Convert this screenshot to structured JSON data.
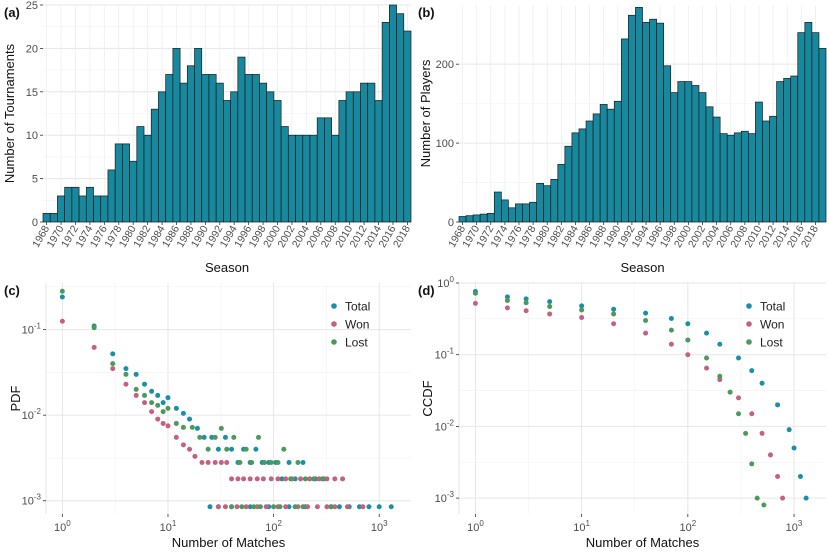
{
  "colors": {
    "teal": "#1a8fa6",
    "pink": "#c4617f",
    "green": "#4a9a5c",
    "bar": "#17889d"
  },
  "chart_data": [
    {
      "panel": "(a)",
      "type": "bar",
      "xlabel": "Season",
      "ylabel": "Number of Tournaments",
      "ylim": [
        0,
        25
      ],
      "yticks": [
        0,
        5,
        10,
        15,
        20,
        25
      ],
      "start_year": 1968,
      "xtick_labels": [
        "1968",
        "1970",
        "1972",
        "1974",
        "1976",
        "1978",
        "1980",
        "1982",
        "1984",
        "1986",
        "1988",
        "1990",
        "1992",
        "1994",
        "1996",
        "1998",
        "2000",
        "2002",
        "2004",
        "2006",
        "2008",
        "2010",
        "2012",
        "2014",
        "2016",
        "2018"
      ],
      "values": [
        1,
        1,
        3,
        4,
        4,
        3,
        4,
        3,
        3,
        6,
        9,
        9,
        7,
        11,
        10,
        13,
        15,
        17,
        20,
        16,
        18,
        20,
        17,
        17,
        16,
        14,
        15,
        19,
        17,
        17,
        16,
        15,
        14,
        11,
        10,
        10,
        10,
        10,
        12,
        12,
        10,
        14,
        15,
        15,
        16,
        16,
        14,
        23,
        25,
        24,
        22
      ]
    },
    {
      "panel": "(b)",
      "type": "bar",
      "xlabel": "Season",
      "ylabel": "Number of Players",
      "ylim": [
        0,
        275
      ],
      "yticks": [
        0,
        100,
        200
      ],
      "start_year": 1968,
      "xtick_labels": [
        "1968",
        "1970",
        "1972",
        "1974",
        "1976",
        "1978",
        "1980",
        "1982",
        "1984",
        "1986",
        "1988",
        "1990",
        "1992",
        "1994",
        "1996",
        "1998",
        "2000",
        "2002",
        "2004",
        "2006",
        "2008",
        "2010",
        "2012",
        "2014",
        "2016",
        "2018"
      ],
      "values": [
        7,
        8,
        9,
        10,
        11,
        38,
        28,
        18,
        23,
        23,
        25,
        49,
        46,
        54,
        73,
        96,
        113,
        118,
        128,
        137,
        149,
        143,
        153,
        232,
        262,
        272,
        253,
        257,
        252,
        198,
        164,
        178,
        178,
        173,
        164,
        146,
        133,
        112,
        110,
        113,
        115,
        112,
        152,
        128,
        134,
        178,
        182,
        185,
        240,
        253,
        240,
        220
      ]
    },
    {
      "panel": "(c)",
      "type": "scatter",
      "xlabel": "Number of Matches",
      "ylabel": "PDF",
      "xscale": "log",
      "yscale": "log",
      "xlim": [
        0.7,
        2000
      ],
      "ylim": [
        0.0007,
        0.35
      ],
      "xtick_labels": [
        "10^0",
        "10^1",
        "10^2",
        "10^3"
      ],
      "ytick_labels": [
        "10^-3",
        "10^-2",
        "10^-1"
      ],
      "legend": [
        "Total",
        "Won",
        "Lost"
      ],
      "legend_position": "top-right",
      "series": [
        {
          "name": "Total",
          "color": "#1a8fa6",
          "points": [
            [
              1,
              0.24
            ],
            [
              2,
              0.11
            ],
            [
              3,
              0.052
            ],
            [
              4,
              0.035
            ],
            [
              5,
              0.03
            ],
            [
              6,
              0.023
            ],
            [
              7,
              0.019
            ],
            [
              8,
              0.017
            ],
            [
              9,
              0.014
            ],
            [
              10,
              0.016
            ],
            [
              12,
              0.012
            ],
            [
              14,
              0.0105
            ],
            [
              16,
              0.009
            ],
            [
              19,
              0.007
            ],
            [
              22,
              0.0055
            ],
            [
              26,
              0.0055
            ],
            [
              30,
              0.004
            ],
            [
              35,
              0.0055
            ],
            [
              40,
              0.004
            ],
            [
              46,
              0.0028
            ],
            [
              52,
              0.004
            ],
            [
              60,
              0.0028
            ],
            [
              68,
              0.004
            ],
            [
              78,
              0.0028
            ],
            [
              90,
              0.0028
            ],
            [
              105,
              0.0028
            ],
            [
              120,
              0.0018
            ],
            [
              140,
              0.0028
            ],
            [
              160,
              0.0018
            ],
            [
              190,
              0.0028
            ],
            [
              220,
              0.0018
            ],
            [
              250,
              0.0018
            ],
            [
              300,
              0.0018
            ],
            [
              350,
              0.00085
            ],
            [
              420,
              0.00085
            ],
            [
              520,
              0.00085
            ],
            [
              650,
              0.00085
            ],
            [
              800,
              0.00085
            ],
            [
              1000,
              0.00085
            ],
            [
              1300,
              0.00085
            ],
            [
              25,
              0.00085
            ],
            [
              30,
              0.00085
            ],
            [
              40,
              0.00085
            ],
            [
              60,
              0.00085
            ],
            [
              90,
              0.00085
            ],
            [
              140,
              0.00085
            ],
            [
              200,
              0.00085
            ]
          ]
        },
        {
          "name": "Won",
          "color": "#c4617f",
          "points": [
            [
              1,
              0.125
            ],
            [
              2,
              0.062
            ],
            [
              3,
              0.035
            ],
            [
              4,
              0.023
            ],
            [
              5,
              0.017
            ],
            [
              6,
              0.014
            ],
            [
              7,
              0.011
            ],
            [
              8,
              0.009
            ],
            [
              9,
              0.008
            ],
            [
              10,
              0.0075
            ],
            [
              12,
              0.0055
            ],
            [
              14,
              0.0045
            ],
            [
              16,
              0.004
            ],
            [
              18,
              0.0033
            ],
            [
              21,
              0.0028
            ],
            [
              24,
              0.0028
            ],
            [
              28,
              0.0028
            ],
            [
              32,
              0.0028
            ],
            [
              36,
              0.0028
            ],
            [
              40,
              0.0018
            ],
            [
              46,
              0.0018
            ],
            [
              52,
              0.0018
            ],
            [
              60,
              0.0018
            ],
            [
              70,
              0.0018
            ],
            [
              80,
              0.0018
            ],
            [
              95,
              0.0018
            ],
            [
              110,
              0.0018
            ],
            [
              130,
              0.0018
            ],
            [
              150,
              0.0018
            ],
            [
              180,
              0.0018
            ],
            [
              220,
              0.0018
            ],
            [
              270,
              0.0018
            ],
            [
              320,
              0.0018
            ],
            [
              380,
              0.0018
            ],
            [
              450,
              0.0018
            ],
            [
              30,
              0.00085
            ],
            [
              35,
              0.00085
            ],
            [
              45,
              0.00085
            ],
            [
              55,
              0.00085
            ],
            [
              70,
              0.00085
            ],
            [
              85,
              0.00085
            ],
            [
              110,
              0.00085
            ],
            [
              130,
              0.00085
            ],
            [
              170,
              0.00085
            ],
            [
              210,
              0.00085
            ],
            [
              260,
              0.00085
            ],
            [
              320,
              0.00085
            ],
            [
              380,
              0.00085
            ],
            [
              500,
              0.00085
            ],
            [
              700,
              0.00085
            ]
          ]
        },
        {
          "name": "Lost",
          "color": "#4a9a5c",
          "points": [
            [
              1,
              0.28
            ],
            [
              2,
              0.105
            ],
            [
              3,
              0.04
            ],
            [
              4,
              0.03
            ],
            [
              5,
              0.02
            ],
            [
              6,
              0.017
            ],
            [
              7,
              0.014
            ],
            [
              8,
              0.013
            ],
            [
              9,
              0.011
            ],
            [
              10,
              0.012
            ],
            [
              12,
              0.008
            ],
            [
              14,
              0.0072
            ],
            [
              17,
              0.0072
            ],
            [
              20,
              0.0055
            ],
            [
              24,
              0.004
            ],
            [
              28,
              0.0055
            ],
            [
              32,
              0.007
            ],
            [
              36,
              0.004
            ],
            [
              42,
              0.0055
            ],
            [
              48,
              0.0028
            ],
            [
              55,
              0.004
            ],
            [
              62,
              0.0028
            ],
            [
              72,
              0.0055
            ],
            [
              82,
              0.0028
            ],
            [
              95,
              0.0028
            ],
            [
              110,
              0.0028
            ],
            [
              125,
              0.004
            ],
            [
              145,
              0.0018
            ],
            [
              170,
              0.0028
            ],
            [
              200,
              0.0018
            ],
            [
              240,
              0.0018
            ],
            [
              290,
              0.0018
            ],
            [
              40,
              0.00085
            ],
            [
              50,
              0.00085
            ],
            [
              65,
              0.00085
            ],
            [
              75,
              0.00085
            ],
            [
              100,
              0.00085
            ],
            [
              115,
              0.00085
            ],
            [
              160,
              0.00085
            ],
            [
              190,
              0.00085
            ],
            [
              350,
              0.00085
            ]
          ]
        }
      ]
    },
    {
      "panel": "(d)",
      "type": "scatter",
      "xlabel": "Number of Matches",
      "ylabel": "CCDF",
      "xscale": "log",
      "yscale": "log",
      "xlim": [
        0.7,
        2000
      ],
      "ylim": [
        0.0006,
        1.0
      ],
      "xtick_labels": [
        "10^0",
        "10^1",
        "10^2",
        "10^3"
      ],
      "ytick_labels": [
        "10^-3",
        "10^-2",
        "10^-1",
        "10^0"
      ],
      "legend": [
        "Total",
        "Won",
        "Lost"
      ],
      "legend_position": "top-right",
      "series": [
        {
          "name": "Total",
          "color": "#1a8fa6",
          "points": [
            [
              1,
              0.76
            ],
            [
              2,
              0.64
            ],
            [
              3,
              0.6
            ],
            [
              5,
              0.55
            ],
            [
              10,
              0.48
            ],
            [
              20,
              0.43
            ],
            [
              40,
              0.38
            ],
            [
              70,
              0.32
            ],
            [
              100,
              0.27
            ],
            [
              150,
              0.2
            ],
            [
              200,
              0.14
            ],
            [
              300,
              0.09
            ],
            [
              400,
              0.06
            ],
            [
              500,
              0.04
            ],
            [
              700,
              0.02
            ],
            [
              900,
              0.009
            ],
            [
              1000,
              0.005
            ],
            [
              1150,
              0.002
            ],
            [
              1300,
              0.001
            ]
          ]
        },
        {
          "name": "Won",
          "color": "#c4617f",
          "points": [
            [
              1,
              0.52
            ],
            [
              2,
              0.45
            ],
            [
              3,
              0.41
            ],
            [
              5,
              0.37
            ],
            [
              10,
              0.33
            ],
            [
              20,
              0.27
            ],
            [
              40,
              0.2
            ],
            [
              70,
              0.14
            ],
            [
              100,
              0.1
            ],
            [
              150,
              0.065
            ],
            [
              200,
              0.045
            ],
            [
              300,
              0.025
            ],
            [
              400,
              0.015
            ],
            [
              500,
              0.008
            ],
            [
              600,
              0.004
            ],
            [
              700,
              0.002
            ],
            [
              780,
              0.001
            ]
          ]
        },
        {
          "name": "Lost",
          "color": "#4a9a5c",
          "points": [
            [
              1,
              0.72
            ],
            [
              2,
              0.57
            ],
            [
              3,
              0.53
            ],
            [
              5,
              0.47
            ],
            [
              10,
              0.42
            ],
            [
              20,
              0.37
            ],
            [
              40,
              0.3
            ],
            [
              70,
              0.22
            ],
            [
              100,
              0.16
            ],
            [
              150,
              0.09
            ],
            [
              200,
              0.05
            ],
            [
              250,
              0.03
            ],
            [
              300,
              0.015
            ],
            [
              350,
              0.008
            ],
            [
              400,
              0.003
            ],
            [
              450,
              0.001
            ],
            [
              520,
              0.0008
            ]
          ]
        }
      ]
    }
  ]
}
